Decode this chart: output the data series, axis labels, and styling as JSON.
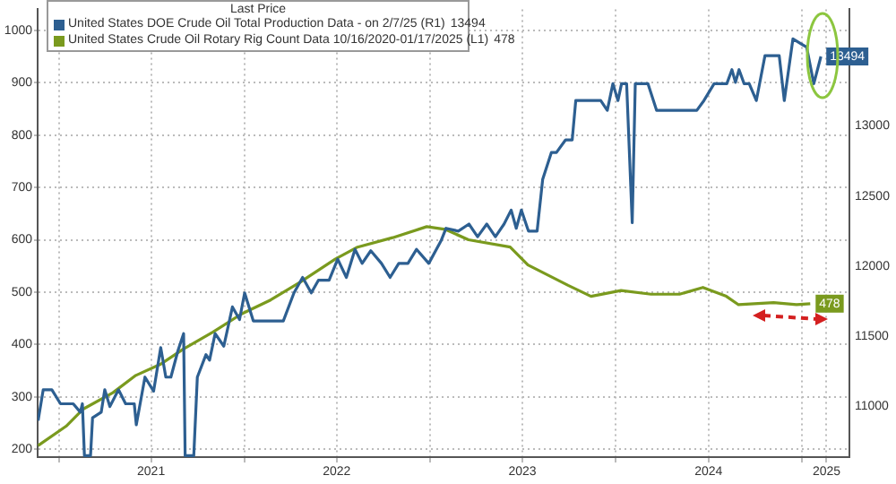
{
  "chart_data": {
    "type": "line",
    "legend_title": "Last Price",
    "annotations": [
      "13494",
      "478"
    ],
    "legend": "top left",
    "grid": true,
    "marker": "none",
    "line_style": "solid",
    "xlim": [
      "2020-11-20",
      "2025-04-04"
    ],
    "xticks": [
      {
        "value": "2021-01-01",
        "label": null
      },
      {
        "value": "2021-07-01",
        "label": "2021"
      },
      {
        "value": "2022-01-01",
        "label": null
      },
      {
        "value": "2022-07-01",
        "label": "2022"
      },
      {
        "value": "2023-01-01",
        "label": null
      },
      {
        "value": "2023-07-01",
        "label": "2023"
      },
      {
        "value": "2024-01-01",
        "label": null
      },
      {
        "value": "2024-07-01",
        "label": "2024"
      },
      {
        "value": "2025-01-01",
        "label": null
      },
      {
        "value": "2025-02-18",
        "label": "2025"
      }
    ],
    "ylim": [
      185,
      1040
    ],
    "yticks": [
      200,
      300,
      400,
      500,
      600,
      700,
      800,
      900,
      1000
    ],
    "y2lim": [
      10640,
      13830
    ],
    "y2ticks": [
      11000,
      11500,
      12000,
      12500,
      13000
    ],
    "series": [
      {
        "name": "United States DOE Crude Oil Total Production Data - on 2/7/25 (R1)",
        "color": "#2d5f91",
        "axis": "y2",
        "x": [
          "2020-11-21",
          "2020-12-01",
          "2020-12-18",
          "2021-01-04",
          "2021-01-29",
          "2021-02-12",
          "2021-02-16",
          "2021-02-20",
          "2021-03-04",
          "2021-03-08",
          "2021-03-25",
          "2021-04-01",
          "2021-04-11",
          "2021-04-28",
          "2021-05-12",
          "2021-05-29",
          "2021-06-02",
          "2021-06-19",
          "2021-07-06",
          "2021-07-20",
          "2021-07-30",
          "2021-08-09",
          "2021-08-23",
          "2021-09-03",
          "2021-09-06",
          "2021-09-23",
          "2021-09-30",
          "2021-10-17",
          "2021-10-24",
          "2021-11-04",
          "2021-11-21",
          "2021-12-08",
          "2021-12-22",
          "2022-01-01",
          "2022-01-18",
          "2022-03-18",
          "2022-04-08",
          "2022-04-25",
          "2022-05-12",
          "2022-05-26",
          "2022-06-16",
          "2022-07-03",
          "2022-07-20",
          "2022-08-06",
          "2022-08-20",
          "2022-09-06",
          "2022-09-27",
          "2022-10-14",
          "2022-10-31",
          "2022-11-18",
          "2022-12-05",
          "2022-12-29",
          "2023-01-22",
          "2023-02-01",
          "2023-02-25",
          "2023-03-18",
          "2023-04-04",
          "2023-04-22",
          "2023-05-09",
          "2023-05-26",
          "2023-06-09",
          "2023-06-19",
          "2023-06-29",
          "2023-07-13",
          "2023-07-30",
          "2023-08-10",
          "2023-08-27",
          "2023-09-06",
          "2023-09-24",
          "2023-10-07",
          "2023-10-14",
          "2023-12-02",
          "2023-12-15",
          "2023-12-26",
          "2024-01-05",
          "2024-01-12",
          "2024-01-22",
          "2024-02-02",
          "2024-02-08",
          "2024-03-04",
          "2024-03-21",
          "2024-06-08",
          "2024-06-22",
          "2024-07-12",
          "2024-08-06",
          "2024-08-16",
          "2024-08-23",
          "2024-08-30",
          "2024-09-09",
          "2024-09-19",
          "2024-10-03",
          "2024-10-20",
          "2024-11-17",
          "2024-11-27",
          "2024-12-14",
          "2025-01-01",
          "2025-01-10",
          "2025-01-24",
          "2025-02-07"
        ],
        "values": [
          10900,
          11120,
          11120,
          11020,
          11020,
          10960,
          11020,
          10650,
          10650,
          10920,
          10960,
          11120,
          11000,
          11120,
          11020,
          11020,
          10870,
          11210,
          11110,
          11420,
          11210,
          11210,
          11400,
          11520,
          10650,
          10650,
          11210,
          11370,
          11330,
          11520,
          11430,
          11710,
          11620,
          11810,
          11610,
          11610,
          11810,
          11920,
          11810,
          11900,
          11900,
          12050,
          11920,
          12120,
          12020,
          12110,
          12020,
          11920,
          12020,
          12020,
          12120,
          12020,
          12180,
          12270,
          12250,
          12300,
          12210,
          12300,
          12210,
          12300,
          12400,
          12270,
          12400,
          12250,
          12250,
          12620,
          12810,
          12810,
          12900,
          12900,
          13180,
          13180,
          13110,
          13300,
          13180,
          13300,
          13300,
          12310,
          13300,
          13300,
          13110,
          13110,
          13180,
          13300,
          13300,
          13400,
          13310,
          13400,
          13300,
          13300,
          13180,
          13500,
          13500,
          13180,
          13620,
          13580,
          13560,
          13300,
          13494
        ],
        "value_labels": [
          null,
          null,
          null,
          null,
          null,
          null,
          null,
          null,
          null,
          null,
          null,
          null,
          null,
          null,
          null,
          null,
          null,
          null,
          null,
          null,
          null,
          null,
          null,
          null,
          null,
          null,
          null,
          null,
          null,
          null,
          null,
          null,
          null,
          null,
          null,
          null,
          null,
          null,
          null,
          null,
          null,
          null,
          null,
          null,
          null,
          null,
          null,
          null,
          null,
          null,
          null,
          null,
          null,
          null,
          null,
          null,
          null,
          null,
          null,
          null,
          null,
          null,
          null,
          null,
          null,
          null,
          null,
          null,
          null,
          null,
          null,
          null,
          null,
          null,
          null,
          null,
          null,
          null,
          null,
          null,
          null,
          null,
          null,
          null,
          null,
          null,
          null,
          null,
          null,
          null,
          null,
          null,
          null,
          null,
          null,
          null,
          null,
          null,
          "13494"
        ]
      },
      {
        "name": "United States Crude Oil Rotary Rig Count Data 10/16/2020-01/17/2025 (L1)",
        "color": "#7a9a1e",
        "x": [
          "2020-11-21",
          "2021-01-15",
          "2021-02-18",
          "2021-04-17",
          "2021-06-01",
          "2021-07-19",
          "2021-09-02",
          "2021-10-31",
          "2021-12-25",
          "2022-02-21",
          "2022-04-20",
          "2022-06-28",
          "2022-08-11",
          "2022-10-19",
          "2022-12-25",
          "2023-01-30",
          "2023-03-17",
          "2023-06-07",
          "2023-07-12",
          "2023-09-29",
          "2023-11-13",
          "2024-01-11",
          "2024-03-10",
          "2024-05-05",
          "2024-06-20",
          "2024-08-05",
          "2024-08-29",
          "2024-11-06",
          "2024-12-21",
          "2025-01-17"
        ],
        "values": [
          207,
          244,
          277,
          308,
          341,
          362,
          391,
          424,
          458,
          485,
          519,
          563,
          586,
          604,
          625,
          620,
          600,
          586,
          552,
          513,
          492,
          503,
          496,
          496,
          509,
          492,
          476,
          480,
          476,
          478
        ],
        "value_labels": [
          null,
          null,
          null,
          null,
          null,
          null,
          null,
          null,
          null,
          null,
          null,
          null,
          null,
          null,
          null,
          null,
          null,
          null,
          null,
          null,
          null,
          null,
          null,
          null,
          null,
          null,
          null,
          null,
          null,
          "478"
        ]
      }
    ]
  }
}
